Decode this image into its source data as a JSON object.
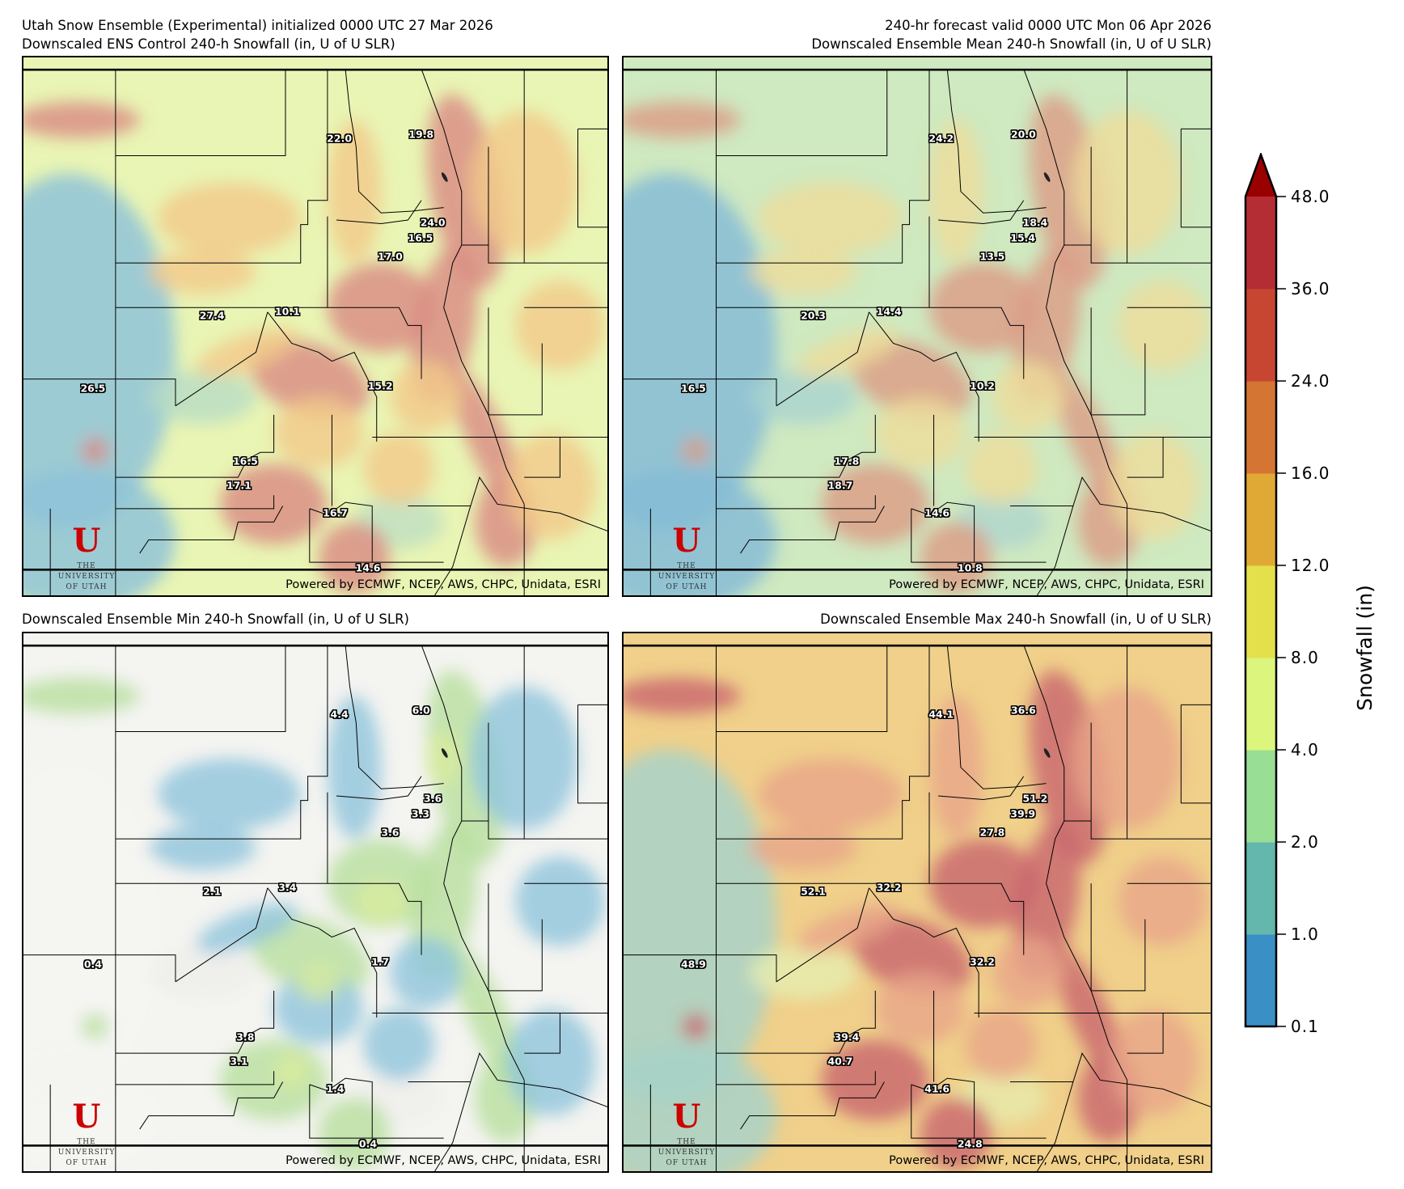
{
  "header": {
    "line1_left": "Utah Snow Ensemble (Experimental) initialized 0000 UTC 27 Mar 2026",
    "line1_right": "240-hr forecast valid 0000 UTC Mon 06 Apr 2026"
  },
  "panels": [
    {
      "title": "Downscaled ENS Control 240-h Snowfall (in, U of U SLR)",
      "scheme": "control",
      "labels": [
        "22.0",
        "19.8",
        "24.0",
        "16.5",
        "17.0",
        "10.1",
        "27.4",
        "26.5",
        "15.2",
        "16.5",
        "17.1",
        "16.7",
        "14.6"
      ]
    },
    {
      "title": "Downscaled Ensemble Mean 240-h Snowfall (in, U of U SLR)",
      "scheme": "mean",
      "labels": [
        "24.2",
        "20.0",
        "18.4",
        "15.4",
        "13.5",
        "14.4",
        "20.3",
        "16.5",
        "10.2",
        "17.8",
        "18.7",
        "14.6",
        "10.8"
      ]
    },
    {
      "title": "Downscaled Ensemble Min 240-h Snowfall (in, U of U SLR)",
      "scheme": "min",
      "labels": [
        "4.4",
        "6.0",
        "3.6",
        "3.3",
        "3.6",
        "3.4",
        "2.1",
        "0.4",
        "1.7",
        "3.8",
        "3.1",
        "1.4",
        "0.4"
      ]
    },
    {
      "title": "Downscaled Ensemble Max 240-h Snowfall (in, U of U SLR)",
      "scheme": "max",
      "labels": [
        "44.1",
        "36.6",
        "51.2",
        "39.9",
        "27.8",
        "32.2",
        "52.1",
        "48.9",
        "32.2",
        "39.4",
        "40.7",
        "41.6",
        "24.8"
      ]
    }
  ],
  "credit": "Powered by ECMWF, NCEP, AWS, CHPC, Unidata, ESRI",
  "logo": {
    "letter": "U",
    "line1": "THE",
    "line2": "UNIVERSITY",
    "line3": "OF UTAH"
  },
  "colorbar": {
    "title": "Snowfall (in)",
    "ticks": [
      "0.1",
      "1.0",
      "2.0",
      "4.0",
      "8.0",
      "12.0",
      "16.0",
      "24.0",
      "36.0",
      "48.0"
    ],
    "colors": [
      "#3a8fc4",
      "#63b7ac",
      "#98de94",
      "#dcf57c",
      "#e4e04c",
      "#e0a935",
      "#d47533",
      "#c64632",
      "#b52d34"
    ],
    "extend_color": "#990000"
  }
}
